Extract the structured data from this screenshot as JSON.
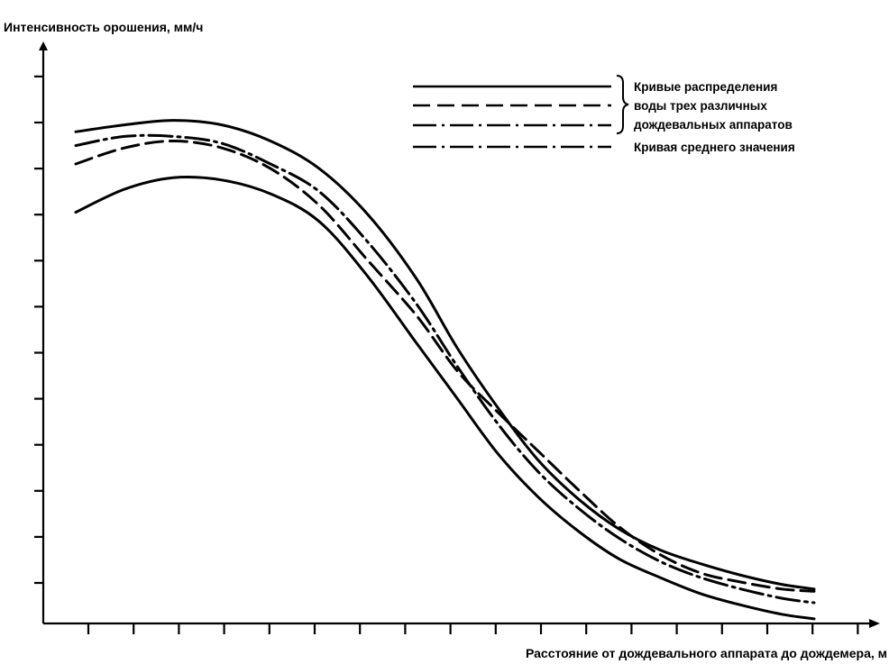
{
  "chart_data": {
    "type": "line",
    "title": "",
    "ylabel": "Интенсивность орошения, мм/ч",
    "xlabel": "Расстояние от дождевального аппарата до дождемера, м",
    "x_ticks_count": 18,
    "y_ticks_count": 12,
    "xlim": [
      0,
      10
    ],
    "ylim": [
      0,
      12
    ],
    "tick_labels_shown": false,
    "grid": false,
    "legend_position": "top-right",
    "legend": {
      "entries": [
        {
          "label": "Кривые распределения",
          "style": "solid"
        },
        {
          "label": "воды трех различных",
          "style": "dashed"
        },
        {
          "label": "дождевальных аппаратов",
          "style": "dash-dot"
        },
        {
          "label": "Кривая среднего значения",
          "style": "dash-dot"
        }
      ]
    },
    "series": [
      {
        "style": "solid",
        "color": "#000000",
        "x": [
          0.4,
          1.0,
          1.6,
          2.2,
          2.8,
          3.4,
          4.0,
          4.6,
          5.1,
          5.6,
          6.1,
          6.6,
          7.1,
          7.6,
          8.1,
          8.6,
          9.1,
          9.5
        ],
        "y": [
          10.7,
          10.85,
          10.95,
          10.85,
          10.5,
          9.9,
          8.9,
          7.5,
          6.0,
          4.7,
          3.55,
          2.7,
          2.05,
          1.6,
          1.3,
          1.05,
          0.85,
          0.75
        ]
      },
      {
        "style": "solid",
        "color": "#000000",
        "x": [
          0.4,
          1.0,
          1.6,
          2.2,
          2.8,
          3.4,
          4.0,
          4.6,
          5.1,
          5.6,
          6.1,
          6.6,
          7.1,
          7.6,
          8.1,
          8.6,
          9.1,
          9.5
        ],
        "y": [
          8.95,
          9.45,
          9.7,
          9.65,
          9.35,
          8.75,
          7.55,
          6.1,
          4.9,
          3.7,
          2.75,
          2.0,
          1.4,
          1.0,
          0.65,
          0.4,
          0.2,
          0.1
        ]
      },
      {
        "style": "dashed",
        "color": "#000000",
        "x": [
          0.4,
          1.0,
          1.6,
          2.2,
          2.8,
          3.4,
          4.0,
          4.6,
          5.1,
          5.6,
          6.1,
          6.6,
          7.1,
          7.6,
          8.1,
          8.6,
          9.1,
          9.5
        ],
        "y": [
          10.0,
          10.35,
          10.5,
          10.35,
          9.9,
          9.1,
          7.9,
          6.7,
          5.5,
          4.6,
          3.75,
          2.9,
          2.1,
          1.5,
          1.1,
          0.9,
          0.75,
          0.7
        ]
      },
      {
        "style": "dash-dot",
        "color": "#000000",
        "x": [
          0.4,
          1.0,
          1.6,
          2.2,
          2.8,
          3.4,
          4.0,
          4.6,
          5.1,
          5.6,
          6.1,
          6.6,
          7.1,
          7.6,
          8.1,
          8.6,
          9.1,
          9.5
        ],
        "y": [
          10.4,
          10.6,
          10.6,
          10.45,
          10.0,
          9.4,
          8.3,
          6.95,
          5.6,
          4.35,
          3.3,
          2.5,
          1.85,
          1.35,
          1.0,
          0.75,
          0.55,
          0.45
        ]
      }
    ]
  }
}
